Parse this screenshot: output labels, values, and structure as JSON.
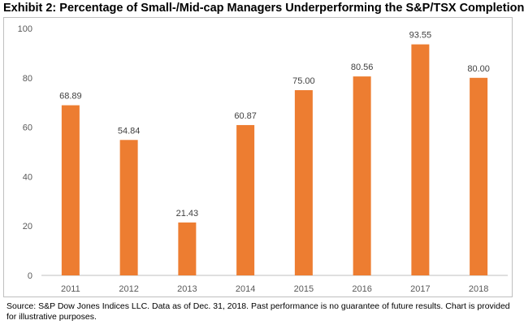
{
  "chart_data": {
    "type": "bar",
    "title": "Exhibit 2:  Percentage of Small-/Mid-cap Managers Underperforming the S&P/TSX Completion",
    "categories": [
      "2011",
      "2012",
      "2013",
      "2014",
      "2015",
      "2016",
      "2017",
      "2018"
    ],
    "values": [
      68.89,
      54.84,
      21.43,
      60.87,
      75.0,
      80.56,
      93.55,
      80.0
    ],
    "value_labels": [
      "68.89",
      "54.84",
      "21.43",
      "60.87",
      "75.00",
      "80.56",
      "93.55",
      "80.00"
    ],
    "xlabel": "",
    "ylabel": "",
    "ylim": [
      0,
      100
    ],
    "yticks": [
      "0",
      "20",
      "40",
      "60",
      "80",
      "100"
    ],
    "grid": false,
    "legend": "none",
    "bar_color": "#ed7d31"
  },
  "source_note": "Source: S&P Dow Jones Indices LLC.  Data as of Dec. 31, 2018.  Past performance is no guarantee of future results.  Chart is provided for illustrative purposes."
}
